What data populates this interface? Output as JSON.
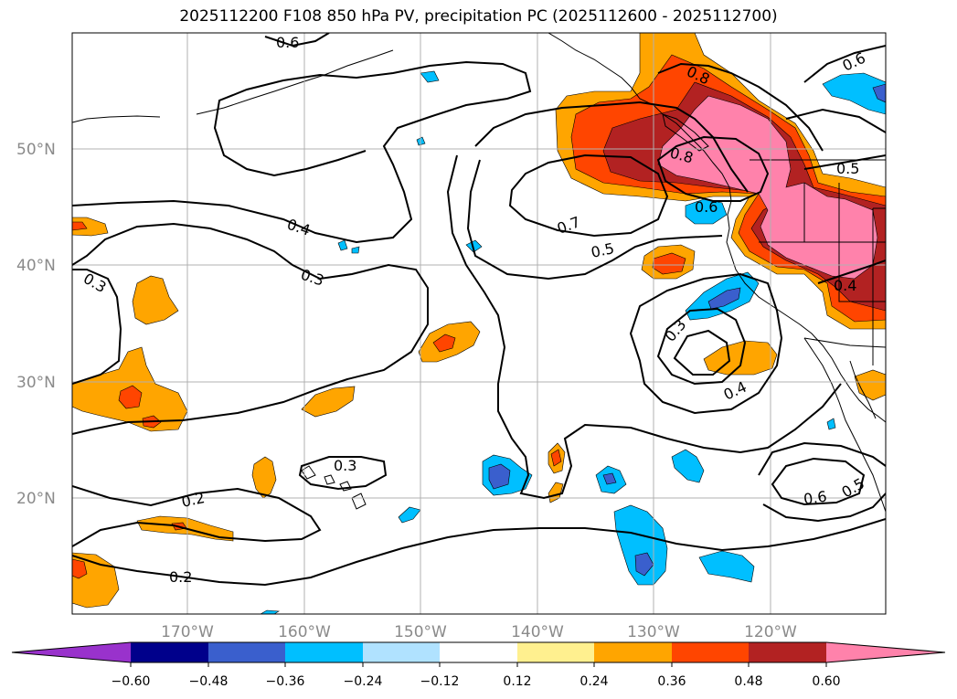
{
  "title": "2025112200 F108 850 hPa PV, precipitation PC (2025112600 - 2025112700)",
  "colors": {
    "n060": "#9932cc",
    "n048": "#00008b",
    "n036": "#3a5fcd",
    "n024": "#00bfff",
    "n012": "#b0e2ff",
    "zero": "#ffffff",
    "p012": "#fff08f",
    "p024": "#ffa500",
    "p036": "#ff4500",
    "p048": "#b22222",
    "p060": "#ff82ab",
    "grid": "#b0b0b0",
    "coast": "#000000"
  },
  "map": {
    "lat_labels": [
      "50°N",
      "40°N",
      "30°N",
      "20°N"
    ],
    "lon_labels": [
      "170°W",
      "160°W",
      "150°W",
      "140°W",
      "130°W",
      "120°W"
    ],
    "contour_labels": [
      "0.2",
      "0.2",
      "0.3",
      "0.3",
      "0.3",
      "0.4",
      "0.3",
      "0.4",
      "0.5",
      "0.7",
      "0.6",
      "0.8",
      "0.8",
      "0.6",
      "0.5",
      "0.4",
      "0.6",
      "0.5",
      "0.6"
    ]
  },
  "colorbar": {
    "ticks": [
      "−0.60",
      "−0.48",
      "−0.36",
      "−0.24",
      "−0.12",
      "0.12",
      "0.24",
      "0.36",
      "0.48",
      "0.60"
    ]
  }
}
